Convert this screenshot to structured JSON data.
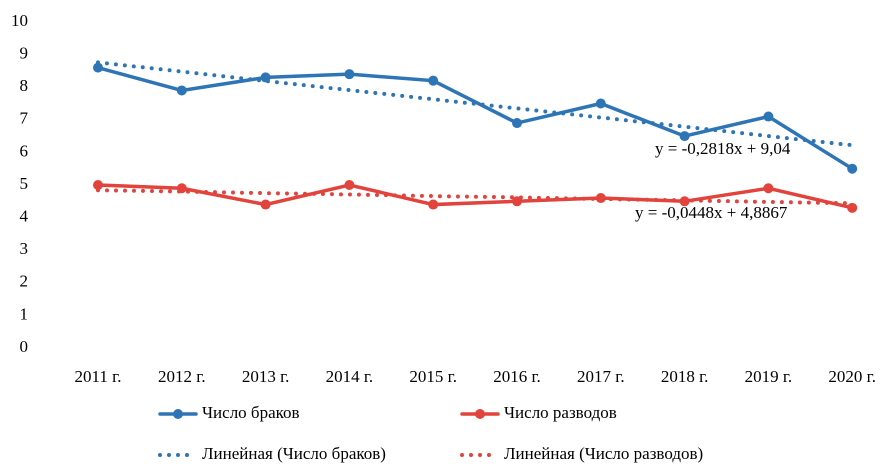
{
  "chart_data": {
    "type": "line",
    "categories": [
      "2011 г.",
      "2012 г.",
      "2013 г.",
      "2014 г.",
      "2015 г.",
      "2016 г.",
      "2017 г.",
      "2018 г.",
      "2019 г.",
      "2020 г."
    ],
    "series": [
      {
        "name": "Число браков",
        "color": "#2e75b6",
        "style": "solid",
        "values": [
          8.6,
          7.9,
          8.3,
          8.4,
          8.2,
          6.9,
          7.5,
          6.5,
          7.1,
          5.5
        ]
      },
      {
        "name": "Число разводов",
        "color": "#e2433d",
        "style": "solid",
        "values": [
          5.0,
          4.9,
          4.4,
          5.0,
          4.4,
          4.5,
          4.6,
          4.5,
          4.9,
          4.3
        ]
      },
      {
        "name": "Линейная (Число браков)",
        "color": "#2e75b6",
        "style": "dotted",
        "values": [
          8.76,
          8.48,
          8.19,
          7.91,
          7.63,
          7.35,
          7.07,
          6.79,
          6.5,
          6.22
        ]
      },
      {
        "name": "Линейная (Число разводов)",
        "color": "#e2433d",
        "style": "dotted",
        "values": [
          4.84,
          4.8,
          4.75,
          4.71,
          4.66,
          4.62,
          4.57,
          4.53,
          4.48,
          4.44
        ]
      }
    ],
    "annotations": [
      "y = -0,2818x + 9,04",
      "y = -0,0448x + 4,8867"
    ],
    "ylim": [
      0,
      10
    ],
    "yticks": [
      0,
      1,
      2,
      3,
      4,
      5,
      6,
      7,
      8,
      9,
      10
    ],
    "grid": false
  }
}
